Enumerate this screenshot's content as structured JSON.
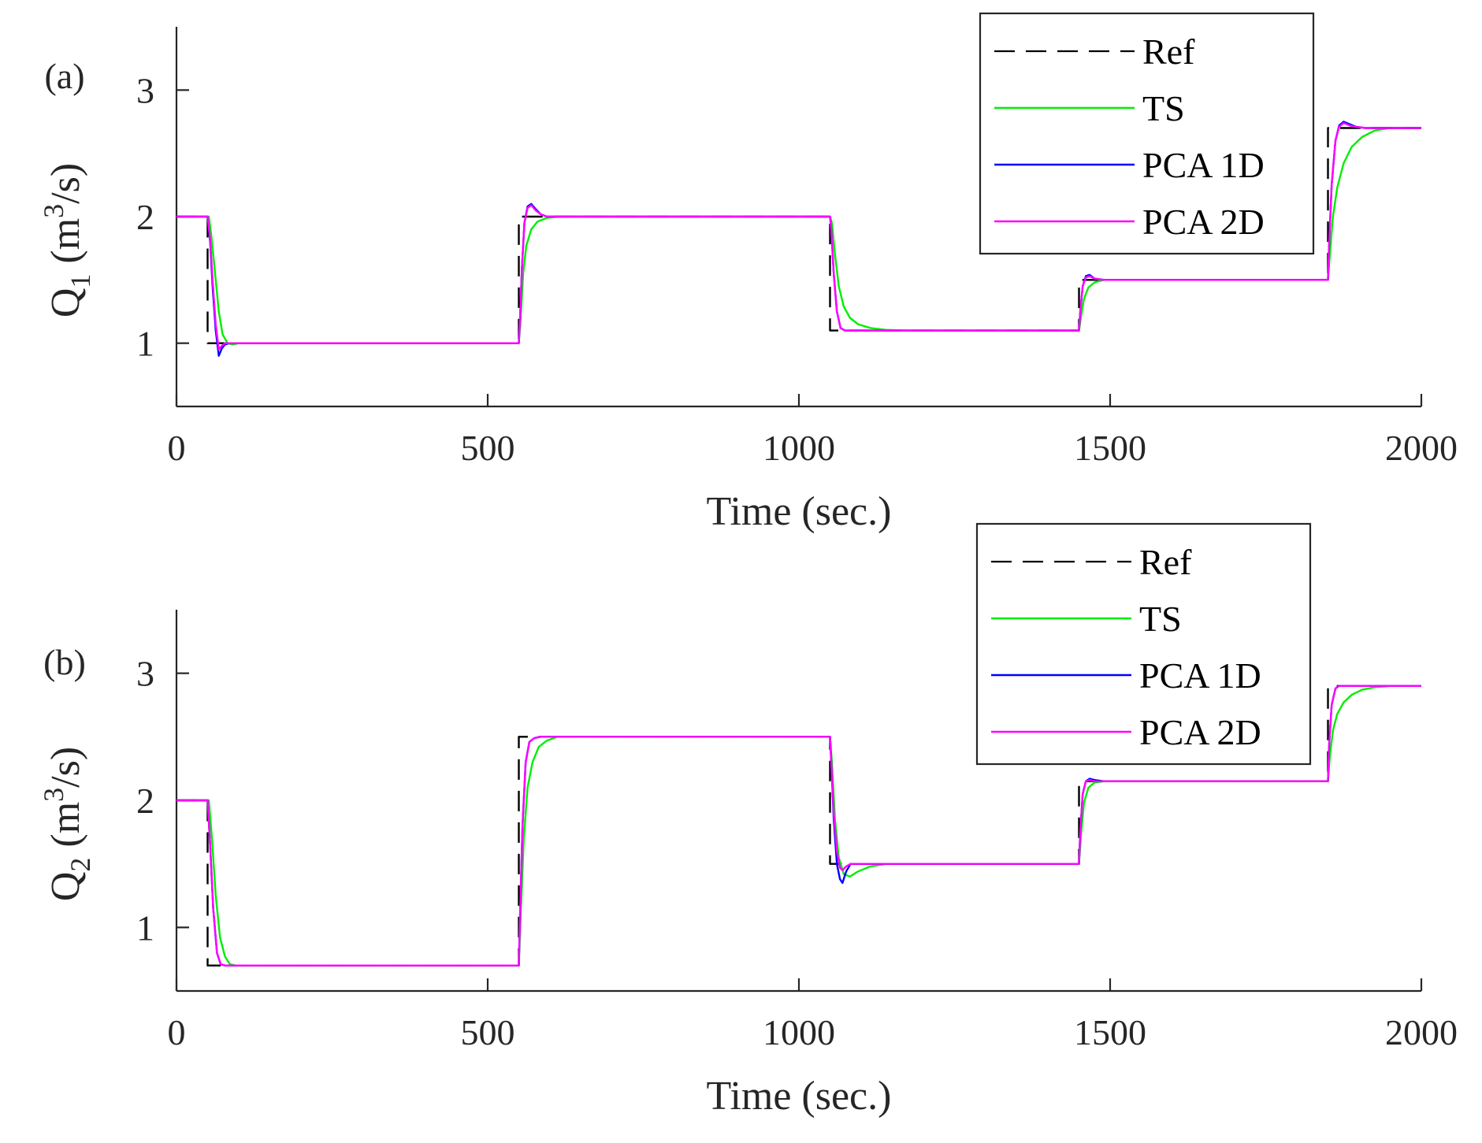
{
  "chart_data": [
    {
      "type": "line",
      "panel_label": "(a)",
      "ylabel": {
        "base": "Q",
        "subscript": "1",
        "mid": " (m",
        "superscript": "3",
        "end": "/s)"
      },
      "xlabel": "Time (sec.)",
      "xlim": [
        0,
        2000
      ],
      "ylim": [
        0.5,
        3.5
      ],
      "xticks": [
        0,
        500,
        1000,
        1500,
        2000
      ],
      "xtick_labels": [
        "0",
        "500",
        "1000",
        "1500",
        "2000"
      ],
      "yticks": [
        1,
        2,
        3
      ],
      "ytick_labels": [
        "1",
        "2",
        "3"
      ],
      "legend": [
        "Ref",
        "TS",
        "PCA 1D",
        "PCA 2D"
      ],
      "legend_location": "top-right",
      "series": [
        {
          "name": "Ref",
          "style": "dashed",
          "color": "#000000",
          "x": [
            0,
            50,
            50,
            550,
            550,
            1050,
            1050,
            1450,
            1450,
            1850,
            1850,
            2000
          ],
          "y": [
            2.0,
            2.0,
            1.0,
            1.0,
            2.0,
            2.0,
            1.1,
            1.1,
            1.5,
            1.5,
            2.7,
            2.7
          ]
        },
        {
          "name": "TS",
          "style": "solid",
          "color": "#00ee00",
          "x": [
            0,
            52,
            56,
            62,
            68,
            74,
            82,
            90,
            100,
            550,
            553,
            557,
            562,
            570,
            580,
            595,
            615,
            640,
            1050,
            1053,
            1058,
            1064,
            1072,
            1082,
            1095,
            1115,
            1140,
            1180,
            1230,
            1450,
            1453,
            1458,
            1465,
            1475,
            1490,
            1510,
            1530,
            1850,
            1853,
            1858,
            1865,
            1875,
            1888,
            1905,
            1925,
            1950,
            1975,
            2000
          ],
          "y": [
            2.0,
            2.0,
            1.85,
            1.55,
            1.25,
            1.07,
            1.0,
            0.99,
            1.0,
            1.0,
            1.2,
            1.55,
            1.77,
            1.9,
            1.96,
            1.99,
            2.0,
            2.0,
            2.0,
            1.95,
            1.7,
            1.45,
            1.29,
            1.2,
            1.15,
            1.12,
            1.105,
            1.1,
            1.1,
            1.1,
            1.2,
            1.35,
            1.44,
            1.48,
            1.5,
            1.5,
            1.5,
            1.5,
            1.7,
            2.0,
            2.23,
            2.42,
            2.55,
            2.63,
            2.68,
            2.7,
            2.7,
            2.7
          ]
        },
        {
          "name": "PCA 1D",
          "style": "solid",
          "color": "#0000ff",
          "x": [
            0,
            50,
            54,
            58,
            63,
            68,
            73,
            78,
            85,
            95,
            550,
            552,
            555,
            559,
            564,
            570,
            577,
            585,
            595,
            610,
            1050,
            1052,
            1056,
            1061,
            1067,
            1074,
            1082,
            1092,
            1110,
            1450,
            1452,
            1456,
            1461,
            1467,
            1475,
            1490,
            1850,
            1852,
            1856,
            1862,
            1868,
            1875,
            1885,
            1895,
            1910,
            1930,
            2000
          ],
          "y": [
            2.0,
            2.0,
            1.8,
            1.45,
            1.1,
            0.9,
            0.96,
            0.99,
            1.0,
            1.0,
            1.0,
            1.2,
            1.6,
            1.95,
            2.08,
            2.1,
            2.06,
            2.02,
            2.0,
            2.0,
            2.0,
            1.9,
            1.55,
            1.25,
            1.12,
            1.1,
            1.1,
            1.1,
            1.1,
            1.1,
            1.25,
            1.45,
            1.53,
            1.54,
            1.51,
            1.5,
            1.5,
            1.8,
            2.25,
            2.6,
            2.72,
            2.75,
            2.73,
            2.71,
            2.7,
            2.7,
            2.7
          ]
        },
        {
          "name": "PCA 2D",
          "style": "solid",
          "color": "#ff00ff",
          "x": [
            0,
            50,
            54,
            58,
            63,
            68,
            73,
            78,
            85,
            95,
            550,
            552,
            555,
            559,
            564,
            570,
            577,
            585,
            595,
            610,
            1050,
            1052,
            1056,
            1061,
            1067,
            1074,
            1082,
            1092,
            1110,
            1450,
            1452,
            1456,
            1461,
            1467,
            1475,
            1490,
            1850,
            1852,
            1856,
            1862,
            1868,
            1875,
            1885,
            1895,
            1910,
            1930,
            2000
          ],
          "y": [
            2.0,
            2.0,
            1.82,
            1.5,
            1.15,
            0.95,
            0.98,
            1.0,
            1.0,
            1.0,
            1.0,
            1.2,
            1.6,
            1.95,
            2.07,
            2.09,
            2.05,
            2.02,
            2.0,
            2.0,
            2.0,
            1.9,
            1.55,
            1.25,
            1.12,
            1.1,
            1.1,
            1.1,
            1.1,
            1.1,
            1.25,
            1.45,
            1.52,
            1.53,
            1.51,
            1.5,
            1.5,
            1.8,
            2.25,
            2.6,
            2.71,
            2.74,
            2.72,
            2.71,
            2.7,
            2.7,
            2.7
          ]
        }
      ]
    },
    {
      "type": "line",
      "panel_label": "(b)",
      "ylabel": {
        "base": "Q",
        "subscript": "2",
        "mid": " (m",
        "superscript": "3",
        "end": "/s)"
      },
      "xlabel": "Time (sec.)",
      "xlim": [
        0,
        2000
      ],
      "ylim": [
        0.5,
        3.5
      ],
      "xticks": [
        0,
        500,
        1000,
        1500,
        2000
      ],
      "xtick_labels": [
        "0",
        "500",
        "1000",
        "1500",
        "2000"
      ],
      "yticks": [
        1,
        2,
        3
      ],
      "ytick_labels": [
        "1",
        "2",
        "3"
      ],
      "legend": [
        "Ref",
        "TS",
        "PCA 1D",
        "PCA 2D"
      ],
      "legend_location": "top-right",
      "series": [
        {
          "name": "Ref",
          "style": "dashed",
          "color": "#000000",
          "x": [
            0,
            50,
            50,
            550,
            550,
            1050,
            1050,
            1450,
            1450,
            1850,
            1850,
            2000
          ],
          "y": [
            2.0,
            2.0,
            0.7,
            0.7,
            2.5,
            2.5,
            1.5,
            1.5,
            2.15,
            2.15,
            2.9,
            2.9
          ]
        },
        {
          "name": "TS",
          "style": "solid",
          "color": "#00ee00",
          "x": [
            0,
            52,
            57,
            63,
            70,
            78,
            86,
            95,
            550,
            553,
            558,
            564,
            572,
            582,
            595,
            612,
            640,
            1050,
            1053,
            1058,
            1064,
            1072,
            1082,
            1095,
            1115,
            1140,
            1450,
            1453,
            1458,
            1465,
            1475,
            1490,
            1850,
            1853,
            1858,
            1865,
            1875,
            1888,
            1905,
            1925,
            1950,
            2000
          ],
          "y": [
            2.0,
            2.0,
            1.7,
            1.25,
            0.92,
            0.77,
            0.71,
            0.7,
            0.7,
            1.1,
            1.7,
            2.1,
            2.3,
            2.42,
            2.47,
            2.5,
            2.5,
            2.5,
            2.3,
            1.85,
            1.55,
            1.42,
            1.4,
            1.44,
            1.48,
            1.5,
            1.5,
            1.72,
            1.98,
            2.1,
            2.14,
            2.15,
            2.15,
            2.35,
            2.55,
            2.68,
            2.77,
            2.83,
            2.87,
            2.89,
            2.9,
            2.9
          ]
        },
        {
          "name": "PCA 1D",
          "style": "solid",
          "color": "#0000ff",
          "x": [
            0,
            50,
            54,
            59,
            65,
            71,
            78,
            90,
            550,
            552,
            556,
            561,
            567,
            575,
            585,
            600,
            1050,
            1052,
            1056,
            1061,
            1066,
            1070,
            1076,
            1083,
            1095,
            1115,
            1450,
            1452,
            1456,
            1461,
            1467,
            1475,
            1490,
            1850,
            1852,
            1856,
            1862,
            1868,
            1875,
            1885,
            1900,
            2000
          ],
          "y": [
            2.0,
            2.0,
            1.65,
            1.15,
            0.8,
            0.71,
            0.7,
            0.7,
            0.7,
            1.1,
            1.8,
            2.3,
            2.46,
            2.49,
            2.5,
            2.5,
            2.5,
            2.3,
            1.85,
            1.5,
            1.38,
            1.35,
            1.44,
            1.5,
            1.5,
            1.5,
            1.5,
            1.75,
            2.05,
            2.15,
            2.17,
            2.16,
            2.15,
            2.15,
            2.45,
            2.75,
            2.88,
            2.9,
            2.9,
            2.9,
            2.9,
            2.9
          ]
        },
        {
          "name": "PCA 2D",
          "style": "solid",
          "color": "#ff00ff",
          "x": [
            0,
            50,
            54,
            59,
            65,
            71,
            78,
            90,
            550,
            552,
            556,
            561,
            567,
            575,
            585,
            600,
            1050,
            1052,
            1056,
            1061,
            1066,
            1070,
            1076,
            1083,
            1095,
            1115,
            1450,
            1452,
            1456,
            1461,
            1467,
            1475,
            1490,
            1850,
            1852,
            1856,
            1862,
            1868,
            1875,
            1885,
            1900,
            2000
          ],
          "y": [
            2.0,
            2.0,
            1.65,
            1.15,
            0.8,
            0.71,
            0.7,
            0.7,
            0.7,
            1.1,
            1.8,
            2.3,
            2.46,
            2.49,
            2.5,
            2.5,
            2.5,
            2.3,
            1.9,
            1.6,
            1.47,
            1.45,
            1.48,
            1.5,
            1.5,
            1.5,
            1.5,
            1.75,
            2.05,
            2.15,
            2.16,
            2.15,
            2.15,
            2.15,
            2.45,
            2.75,
            2.88,
            2.9,
            2.9,
            2.9,
            2.9,
            2.9
          ]
        }
      ]
    }
  ]
}
